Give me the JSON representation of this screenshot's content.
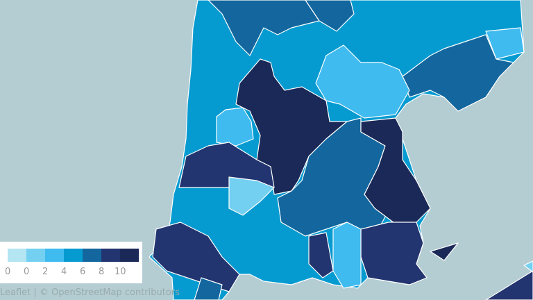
{
  "legend": {
    "colors": [
      "#b3e5f3",
      "#74d0f1",
      "#40bbef",
      "#069bd0",
      "#13679e",
      "#223570",
      "#1a2957"
    ],
    "labels": [
      "0",
      "0",
      "2",
      "4",
      "6",
      "8",
      "10"
    ]
  },
  "attribution": {
    "leaflet": "Leaflet",
    "separator": "|",
    "osm": "© OpenStreetMap contributors"
  },
  "colors": {
    "sea": "#b4cdd3",
    "border": "#ffffff"
  }
}
